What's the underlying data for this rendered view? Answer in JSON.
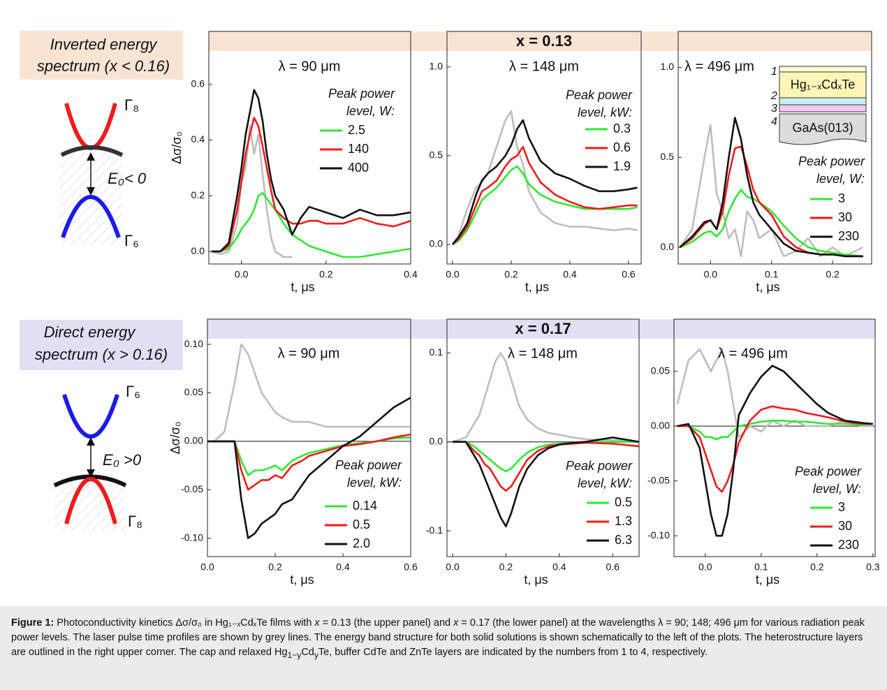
{
  "rows": [
    {
      "lines": [
        "Inverted energy",
        "spectrum (x < 0.16)"
      ],
      "header": "x = 0.13",
      "upper_band": "Γ₈",
      "lower_band": "Γ₆",
      "gap": "E₀< 0"
    },
    {
      "lines": [
        "Direct energy",
        "spectrum (x > 0.16)"
      ],
      "header": "x = 0.17",
      "upper_band": "Γ₆",
      "lower_band": "Γ₈",
      "gap": "E₀ >0"
    }
  ],
  "inset": {
    "labels": [
      "1",
      "2",
      "3",
      "4"
    ],
    "top_layer": "Hg₁₋ₓCdₓTe",
    "substrate": "GaAs(013)"
  },
  "chart_data": [
    {
      "type": "line",
      "title": "λ = 90 μm",
      "xlabel": "t, μs",
      "ylabel": "Δσ/σ₀",
      "legend_title": [
        "Peak power",
        "level, W:"
      ],
      "xlim": [
        -0.077,
        0.4
      ],
      "ylim": [
        -0.045,
        0.79
      ],
      "xticks": [
        {
          "value": 0,
          "label": "0.0"
        },
        0.2,
        0.4
      ],
      "yticks": [
        {
          "value": 0,
          "label": "0.0"
        },
        0.2,
        0.4,
        0.6
      ],
      "x": [
        -0.07,
        -0.05,
        -0.03,
        -0.01,
        0.0,
        0.01,
        0.02,
        0.03,
        0.04,
        0.05,
        0.06,
        0.07,
        0.08,
        0.1,
        0.12,
        0.14,
        0.16,
        0.18,
        0.2,
        0.24,
        0.28,
        0.32,
        0.36,
        0.4
      ],
      "series": [
        {
          "color": "#bdbdbd",
          "values": [
            0,
            -0.01,
            0.0,
            0.1,
            0.25,
            0.3,
            0.45,
            0.35,
            0.42,
            0.28,
            0.15,
            0.05,
            0.0,
            -0.02,
            -0.02,
            null,
            null,
            null,
            null,
            null,
            null,
            null,
            null,
            null
          ]
        },
        {
          "name": "2.5",
          "color": "#33e633",
          "values": [
            0,
            0,
            0.01,
            0.05,
            0.08,
            0.1,
            0.12,
            0.15,
            0.2,
            0.21,
            0.19,
            0.17,
            0.15,
            0.1,
            0.06,
            0.04,
            0.02,
            0.01,
            0.0,
            -0.02,
            -0.02,
            -0.01,
            0.0,
            0.01
          ]
        },
        {
          "name": "140",
          "color": "#ee1c1c",
          "values": [
            0,
            0,
            0.02,
            0.15,
            0.25,
            0.35,
            0.42,
            0.48,
            0.45,
            0.38,
            0.3,
            0.22,
            0.15,
            0.12,
            0.1,
            0.1,
            0.11,
            0.11,
            0.1,
            0.1,
            0.12,
            0.1,
            0.09,
            0.11
          ]
        },
        {
          "name": "400",
          "color": "#111111",
          "values": [
            0,
            0,
            0.03,
            0.2,
            0.3,
            0.42,
            0.5,
            0.58,
            0.55,
            0.47,
            0.35,
            0.26,
            0.2,
            0.15,
            0.06,
            0.12,
            0.16,
            0.15,
            0.14,
            0.12,
            0.15,
            0.13,
            0.13,
            0.14
          ]
        }
      ]
    },
    {
      "type": "line",
      "title": "λ = 148 μm",
      "xlabel": "t, μs",
      "legend_title": [
        "Peak power",
        "level, kW:"
      ],
      "xlim": [
        -0.019,
        0.643
      ],
      "ylim": [
        -0.11,
        1.2
      ],
      "xticks": [
        {
          "value": 0,
          "label": "0.0"
        },
        0.2,
        0.4,
        0.6
      ],
      "yticks": [
        {
          "value": 0,
          "label": "0.0"
        },
        0.5,
        {
          "value": 1,
          "label": "1.0"
        }
      ],
      "x": [
        0,
        0.02,
        0.05,
        0.08,
        0.1,
        0.12,
        0.15,
        0.18,
        0.2,
        0.22,
        0.24,
        0.26,
        0.3,
        0.35,
        0.4,
        0.45,
        0.5,
        0.55,
        0.6,
        0.63
      ],
      "series": [
        {
          "color": "#bdbdbd",
          "values": [
            0,
            0.05,
            0.2,
            0.32,
            0.35,
            0.4,
            0.55,
            0.7,
            0.75,
            0.55,
            0.45,
            0.3,
            0.18,
            0.12,
            0.1,
            0.1,
            0.09,
            0.08,
            0.09,
            0.08
          ]
        },
        {
          "name": "0.3",
          "color": "#33e633",
          "values": [
            0,
            0.02,
            0.08,
            0.18,
            0.25,
            0.28,
            0.32,
            0.38,
            0.42,
            0.44,
            0.4,
            0.34,
            0.28,
            0.24,
            0.22,
            0.2,
            0.2,
            0.2,
            0.2,
            0.21
          ]
        },
        {
          "name": "0.6",
          "color": "#ee1c1c",
          "values": [
            0,
            0.03,
            0.1,
            0.22,
            0.3,
            0.32,
            0.36,
            0.44,
            0.48,
            0.5,
            0.55,
            0.46,
            0.35,
            0.28,
            0.24,
            0.21,
            0.2,
            0.21,
            0.22,
            0.22
          ]
        },
        {
          "name": "1.9",
          "color": "#111111",
          "values": [
            0,
            0.04,
            0.12,
            0.28,
            0.36,
            0.4,
            0.44,
            0.5,
            0.56,
            0.65,
            0.7,
            0.6,
            0.47,
            0.4,
            0.37,
            0.33,
            0.3,
            0.3,
            0.31,
            0.32
          ]
        }
      ]
    },
    {
      "type": "line",
      "title": "λ = 496 μm",
      "xlabel": "t, μs",
      "legend_title": [
        "Peak power",
        "level, W:"
      ],
      "xlim": [
        -0.053,
        0.264
      ],
      "ylim": [
        -0.093,
        1.2
      ],
      "xticks": [
        {
          "value": 0,
          "label": "0.0"
        },
        0.1,
        0.2
      ],
      "yticks": [
        {
          "value": 0,
          "label": "0.0"
        },
        0.5,
        {
          "value": 1,
          "label": "1.0"
        }
      ],
      "x": [
        -0.05,
        -0.03,
        -0.01,
        0.0,
        0.01,
        0.02,
        0.03,
        0.04,
        0.05,
        0.06,
        0.07,
        0.08,
        0.1,
        0.12,
        0.14,
        0.16,
        0.18,
        0.2,
        0.22,
        0.25
      ],
      "series": [
        {
          "color": "#bdbdbd",
          "values": [
            0,
            0.1,
            0.5,
            0.68,
            0.3,
            0.2,
            0.05,
            0.1,
            -0.05,
            0.2,
            0.15,
            0.05,
            0.1,
            -0.05,
            -0.02,
            0.05,
            -0.05,
            0.0,
            -0.05,
            0.0
          ]
        },
        {
          "name": "3",
          "color": "#33e633",
          "values": [
            0,
            0.03,
            0.08,
            0.09,
            0.06,
            0.1,
            0.2,
            0.27,
            0.32,
            0.28,
            0.27,
            0.25,
            0.2,
            0.12,
            0.05,
            0.0,
            -0.02,
            -0.03,
            -0.04,
            -0.05
          ]
        },
        {
          "name": "30",
          "color": "#ee1c1c",
          "values": [
            0,
            0.05,
            0.13,
            0.15,
            0.1,
            0.2,
            0.4,
            0.55,
            0.56,
            0.45,
            0.32,
            0.25,
            0.18,
            0.06,
            0.0,
            -0.03,
            -0.04,
            -0.04,
            -0.05,
            -0.05
          ]
        },
        {
          "name": "230",
          "color": "#111111",
          "values": [
            0,
            0.06,
            0.14,
            0.15,
            0.1,
            0.25,
            0.5,
            0.72,
            0.6,
            0.4,
            0.25,
            0.18,
            0.1,
            0.02,
            -0.02,
            -0.03,
            -0.04,
            -0.04,
            -0.05,
            -0.05
          ]
        }
      ]
    },
    {
      "type": "line",
      "title": "λ = 90 μm",
      "xlabel": "t, μs",
      "ylabel": "Δσ/σ₀",
      "legend_title": [
        "Peak power",
        "level, kW:"
      ],
      "zero_line": true,
      "xlim": [
        0,
        0.6
      ],
      "ylim": [
        -0.119,
        0.126
      ],
      "xticks": [
        {
          "value": 0,
          "label": "0.0"
        },
        0.2,
        0.4,
        0.6
      ],
      "yticks": [
        {
          "value": -0.1,
          "label": "-0.10"
        },
        -0.05,
        {
          "value": 0,
          "label": "0.00"
        },
        0.05,
        {
          "value": 0.1,
          "label": "0.10"
        }
      ],
      "x": [
        0,
        0.02,
        0.05,
        0.08,
        0.1,
        0.12,
        0.14,
        0.16,
        0.18,
        0.2,
        0.22,
        0.25,
        0.28,
        0.3,
        0.35,
        0.4,
        0.45,
        0.5,
        0.55,
        0.6
      ],
      "series": [
        {
          "color": "#bdbdbd",
          "values": [
            0,
            0,
            0.01,
            0.06,
            0.1,
            0.09,
            0.07,
            0.05,
            0.04,
            0.03,
            0.025,
            0.02,
            0.02,
            0.02,
            0.015,
            0.015,
            0.015,
            0.015,
            0.015,
            0.015
          ]
        },
        {
          "name": "0.14",
          "color": "#33e633",
          "values": [
            0,
            0,
            0,
            0,
            -0.02,
            -0.035,
            -0.03,
            -0.03,
            -0.028,
            -0.025,
            -0.03,
            -0.02,
            -0.015,
            -0.012,
            -0.008,
            -0.004,
            -0.002,
            0,
            0.003,
            0.004
          ]
        },
        {
          "name": "0.5",
          "color": "#ee1c1c",
          "values": [
            0,
            0,
            0,
            0,
            -0.03,
            -0.05,
            -0.045,
            -0.04,
            -0.04,
            -0.035,
            -0.038,
            -0.025,
            -0.02,
            -0.015,
            -0.01,
            -0.005,
            -0.003,
            0.0,
            0.004,
            0.007
          ]
        },
        {
          "name": "2.0",
          "color": "#111111",
          "values": [
            0,
            0,
            0,
            0,
            -0.06,
            -0.1,
            -0.095,
            -0.085,
            -0.08,
            -0.075,
            -0.065,
            -0.06,
            -0.045,
            -0.035,
            -0.02,
            -0.005,
            0.005,
            0.02,
            0.035,
            0.045
          ]
        }
      ]
    },
    {
      "type": "line",
      "title": "λ = 148 μm",
      "xlabel": "t, μs",
      "legend_title": [
        "Peak power",
        "level, kW:"
      ],
      "zero_line": true,
      "xlim": [
        -0.021,
        0.699
      ],
      "ylim": [
        -0.129,
        0.138
      ],
      "xticks": [
        {
          "value": 0,
          "label": "0.0"
        },
        0.2,
        0.4,
        0.6
      ],
      "yticks": [
        -0.1,
        {
          "value": 0,
          "label": "0.0"
        },
        0.1
      ],
      "x": [
        0,
        0.05,
        0.08,
        0.1,
        0.12,
        0.14,
        0.16,
        0.18,
        0.2,
        0.22,
        0.25,
        0.28,
        0.32,
        0.36,
        0.4,
        0.45,
        0.5,
        0.6,
        0.7
      ],
      "series": [
        {
          "color": "#bdbdbd",
          "values": [
            0,
            0.005,
            0.02,
            0.03,
            0.05,
            0.07,
            0.09,
            0.1,
            0.09,
            0.07,
            0.04,
            0.025,
            0.015,
            0.01,
            0.008,
            0.005,
            0.003,
            0.002,
            0.0
          ]
        },
        {
          "name": "0.5",
          "color": "#33e633",
          "values": [
            0,
            0,
            -0.005,
            -0.01,
            -0.015,
            -0.02,
            -0.025,
            -0.03,
            -0.033,
            -0.03,
            -0.02,
            -0.012,
            -0.006,
            -0.003,
            -0.002,
            -0.001,
            0,
            0,
            0
          ]
        },
        {
          "name": "1.3",
          "color": "#ee1c1c",
          "values": [
            0,
            0,
            -0.01,
            -0.015,
            -0.025,
            -0.03,
            -0.04,
            -0.05,
            -0.055,
            -0.05,
            -0.035,
            -0.02,
            -0.01,
            -0.005,
            -0.003,
            -0.002,
            -0.001,
            -0.002,
            -0.005
          ]
        },
        {
          "name": "6.3",
          "color": "#111111",
          "values": [
            0,
            0,
            -0.015,
            -0.025,
            -0.04,
            -0.055,
            -0.07,
            -0.085,
            -0.095,
            -0.08,
            -0.05,
            -0.03,
            -0.015,
            -0.007,
            -0.003,
            -0.001,
            0,
            0.005,
            0.0
          ]
        }
      ]
    },
    {
      "type": "line",
      "title": "λ = 496 μm",
      "xlabel": "t, μs",
      "legend_title": [
        "Peak power",
        "level, W:"
      ],
      "zero_line": true,
      "xlim": [
        -0.056,
        0.304
      ],
      "ylim": [
        -0.119,
        0.0975
      ],
      "xticks": [
        {
          "value": 0,
          "label": "0.0"
        },
        0.1,
        0.2,
        0.3
      ],
      "yticks": [
        {
          "value": -0.1,
          "label": "-0.10"
        },
        -0.05,
        {
          "value": 0,
          "label": "0.00"
        },
        0.05
      ],
      "x": [
        -0.05,
        -0.03,
        -0.01,
        0.0,
        0.01,
        0.02,
        0.03,
        0.04,
        0.05,
        0.06,
        0.08,
        0.1,
        0.12,
        0.14,
        0.16,
        0.18,
        0.2,
        0.22,
        0.25,
        0.28,
        0.3
      ],
      "series": [
        {
          "color": "#bdbdbd",
          "values": [
            0.02,
            0.06,
            0.07,
            0.06,
            0.05,
            0.06,
            0.07,
            0.05,
            0.02,
            -0.01,
            0.0,
            -0.005,
            0.005,
            0.0,
            0.005,
            0.0,
            0.0,
            0.0,
            0.005,
            0.0,
            0.0
          ]
        },
        {
          "name": "3",
          "color": "#33e633",
          "values": [
            0,
            0,
            -0.005,
            -0.01,
            -0.01,
            -0.012,
            -0.01,
            -0.01,
            -0.005,
            0,
            0.002,
            0.004,
            0.005,
            0.005,
            0.004,
            0.004,
            0.003,
            0.002,
            0.002,
            0.001,
            0.002
          ]
        },
        {
          "name": "30",
          "color": "#ee1c1c",
          "values": [
            0,
            0,
            -0.01,
            -0.025,
            -0.04,
            -0.055,
            -0.06,
            -0.05,
            -0.035,
            -0.015,
            0.005,
            0.015,
            0.018,
            0.016,
            0.015,
            0.012,
            0.01,
            0.008,
            0.004,
            0.002,
            0.002
          ]
        },
        {
          "name": "230",
          "color": "#111111",
          "values": [
            0,
            0.002,
            -0.02,
            -0.05,
            -0.08,
            -0.1,
            -0.1,
            -0.08,
            -0.04,
            0.01,
            0.03,
            0.045,
            0.055,
            0.05,
            0.04,
            0.03,
            0.02,
            0.012,
            0.005,
            0.003,
            0.002
          ]
        }
      ]
    }
  ],
  "caption": [
    {
      "text": "Figure 1:",
      "bold": true
    },
    {
      "text": " Photoconductivity kinetics Δσ/σ₀ in Hg₁₋ₓCdₓTe films with "
    },
    {
      "text": "x",
      "italic": true
    },
    {
      "text": " = 0.13 (the upper panel) and "
    },
    {
      "text": "x",
      "italic": true
    },
    {
      "text": " = 0.17 (the lower panel) at the wavelengths λ = 90; 148; 496 μm for various radiation peak power levels. The laser pulse time profiles are shown by grey lines. The energy band structure for both solid solutions is shown schematically to the left of the plots. The heterostructure layers are outlined in the right upper corner. The cap and relaxed Hg"
    },
    {
      "text": "1−y",
      "sub": true
    },
    {
      "text": "Cd"
    },
    {
      "text": "y",
      "sub": true
    },
    {
      "text": "Te, buffer CdTe and ZnTe layers are indicated by the numbers from 1 to 4, respectively."
    }
  ]
}
